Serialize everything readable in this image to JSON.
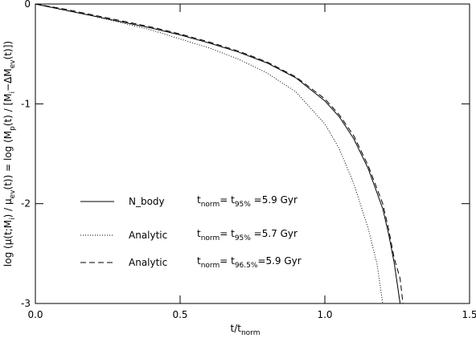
{
  "chart_data": {
    "type": "line",
    "xlabel": [
      "t/t",
      "norm"
    ],
    "ylabel": [
      "log (μ(t;M",
      "i",
      ") / μ",
      "ev",
      "(t)) = log (M",
      "p",
      "(t) / [M",
      "i",
      "−ΔM",
      "ev",
      "(t)])"
    ],
    "xlim": [
      0,
      1.5
    ],
    "ylim": [
      -3,
      0
    ],
    "xticks": [
      {
        "value": 0,
        "label": "0.0"
      },
      0.5,
      {
        "value": 1,
        "label": "1.0"
      },
      1.5
    ],
    "yticks": [
      0,
      -1,
      -2,
      -3
    ],
    "series": [
      {
        "name": "N_body",
        "dash": "solid",
        "color": "#000000",
        "note": [
          "t",
          "norm",
          "= t",
          "95%",
          " =5.9  Gyr"
        ],
        "x": [
          0,
          0.1,
          0.2,
          0.3,
          0.4,
          0.5,
          0.6,
          0.7,
          0.8,
          0.9,
          1.0,
          1.05,
          1.1,
          1.15,
          1.2,
          1.22,
          1.24,
          1.25,
          1.26
        ],
        "values": [
          0,
          -0.06,
          -0.12,
          -0.18,
          -0.24,
          -0.31,
          -0.39,
          -0.48,
          -0.59,
          -0.74,
          -0.97,
          -1.13,
          -1.35,
          -1.65,
          -2.05,
          -2.3,
          -2.6,
          -2.8,
          -3.0
        ]
      },
      {
        "name": "Analytic",
        "dash": "dotted",
        "color": "#000000",
        "note": [
          "t",
          "norm",
          "= t",
          "95%",
          " =5.7  Gyr"
        ],
        "x": [
          0,
          0.1,
          0.2,
          0.3,
          0.4,
          0.5,
          0.6,
          0.7,
          0.8,
          0.9,
          1.0,
          1.05,
          1.1,
          1.15,
          1.18,
          1.2
        ],
        "values": [
          0,
          -0.06,
          -0.12,
          -0.19,
          -0.26,
          -0.35,
          -0.44,
          -0.55,
          -0.69,
          -0.88,
          -1.2,
          -1.45,
          -1.8,
          -2.25,
          -2.6,
          -3.0
        ]
      },
      {
        "name": "Analytic",
        "dash": "dashed",
        "color": "#000000",
        "note": [
          "t",
          "norm",
          "= t",
          "96.5%",
          "=5.9  Gyr"
        ],
        "x": [
          0,
          0.1,
          0.2,
          0.3,
          0.4,
          0.5,
          0.6,
          0.7,
          0.8,
          0.9,
          1.0,
          1.05,
          1.1,
          1.15,
          1.2,
          1.22,
          1.24,
          1.26,
          1.27
        ],
        "values": [
          0,
          -0.05,
          -0.11,
          -0.17,
          -0.23,
          -0.3,
          -0.38,
          -0.47,
          -0.58,
          -0.73,
          -0.95,
          -1.11,
          -1.32,
          -1.62,
          -2.0,
          -2.25,
          -2.55,
          -2.75,
          -3.0
        ]
      }
    ]
  }
}
